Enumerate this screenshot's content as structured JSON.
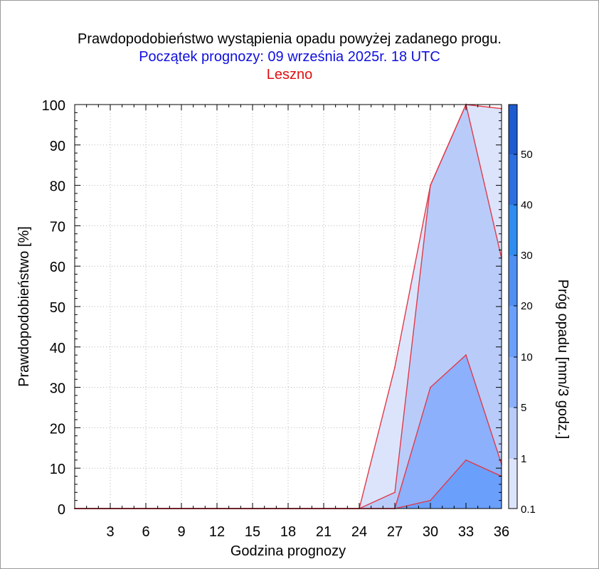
{
  "title": "Prawdopodobieństwo wystąpienia opadu powyżej zadanego progu.",
  "subtitle": "Początek prognozy: 09 września 2025r. 18 UTC",
  "location": "Leszno",
  "chart_data": {
    "type": "area",
    "xlabel": "Godzina prognozy",
    "ylabel": "Prawdopodobieństwo [%]",
    "xlim": [
      0,
      36
    ],
    "ylim": [
      0,
      100
    ],
    "xticks": [
      "3",
      "6",
      "9",
      "12",
      "15",
      "18",
      "21",
      "24",
      "27",
      "30",
      "33",
      "36"
    ],
    "yticks": [
      "0",
      "10",
      "20",
      "30",
      "40",
      "50",
      "60",
      "70",
      "80",
      "90",
      "100"
    ],
    "x": [
      0,
      3,
      6,
      9,
      12,
      15,
      18,
      21,
      24,
      27,
      30,
      33,
      36
    ],
    "series": [
      {
        "name": "0.1",
        "values": [
          0,
          0,
          0,
          0,
          0,
          0,
          0,
          0,
          0,
          35,
          80,
          100,
          99
        ],
        "color": "#dce4fb"
      },
      {
        "name": "1",
        "values": [
          0,
          0,
          0,
          0,
          0,
          0,
          0,
          0,
          0,
          4,
          80,
          100,
          62
        ],
        "color": "#b9ccf9"
      },
      {
        "name": "5",
        "values": [
          0,
          0,
          0,
          0,
          0,
          0,
          0,
          0,
          0,
          0,
          30,
          38,
          11
        ],
        "color": "#8cb0fb"
      },
      {
        "name": "10",
        "values": [
          0,
          0,
          0,
          0,
          0,
          0,
          0,
          0,
          0,
          0,
          2,
          12,
          8
        ],
        "color": "#6aa0fb"
      }
    ],
    "colorbar": {
      "label": "Próg opadu [mm/3 godz.]",
      "labels": [
        "0.1",
        "1",
        "5",
        "10",
        "20",
        "30",
        "40",
        "50"
      ],
      "colors": [
        "#dce4fb",
        "#b9ccf9",
        "#8cb0fb",
        "#6aa0fb",
        "#4f8ef3",
        "#2f8cf0",
        "#2c6fe0",
        "#1f5bd0",
        "#0f45b5"
      ]
    }
  }
}
